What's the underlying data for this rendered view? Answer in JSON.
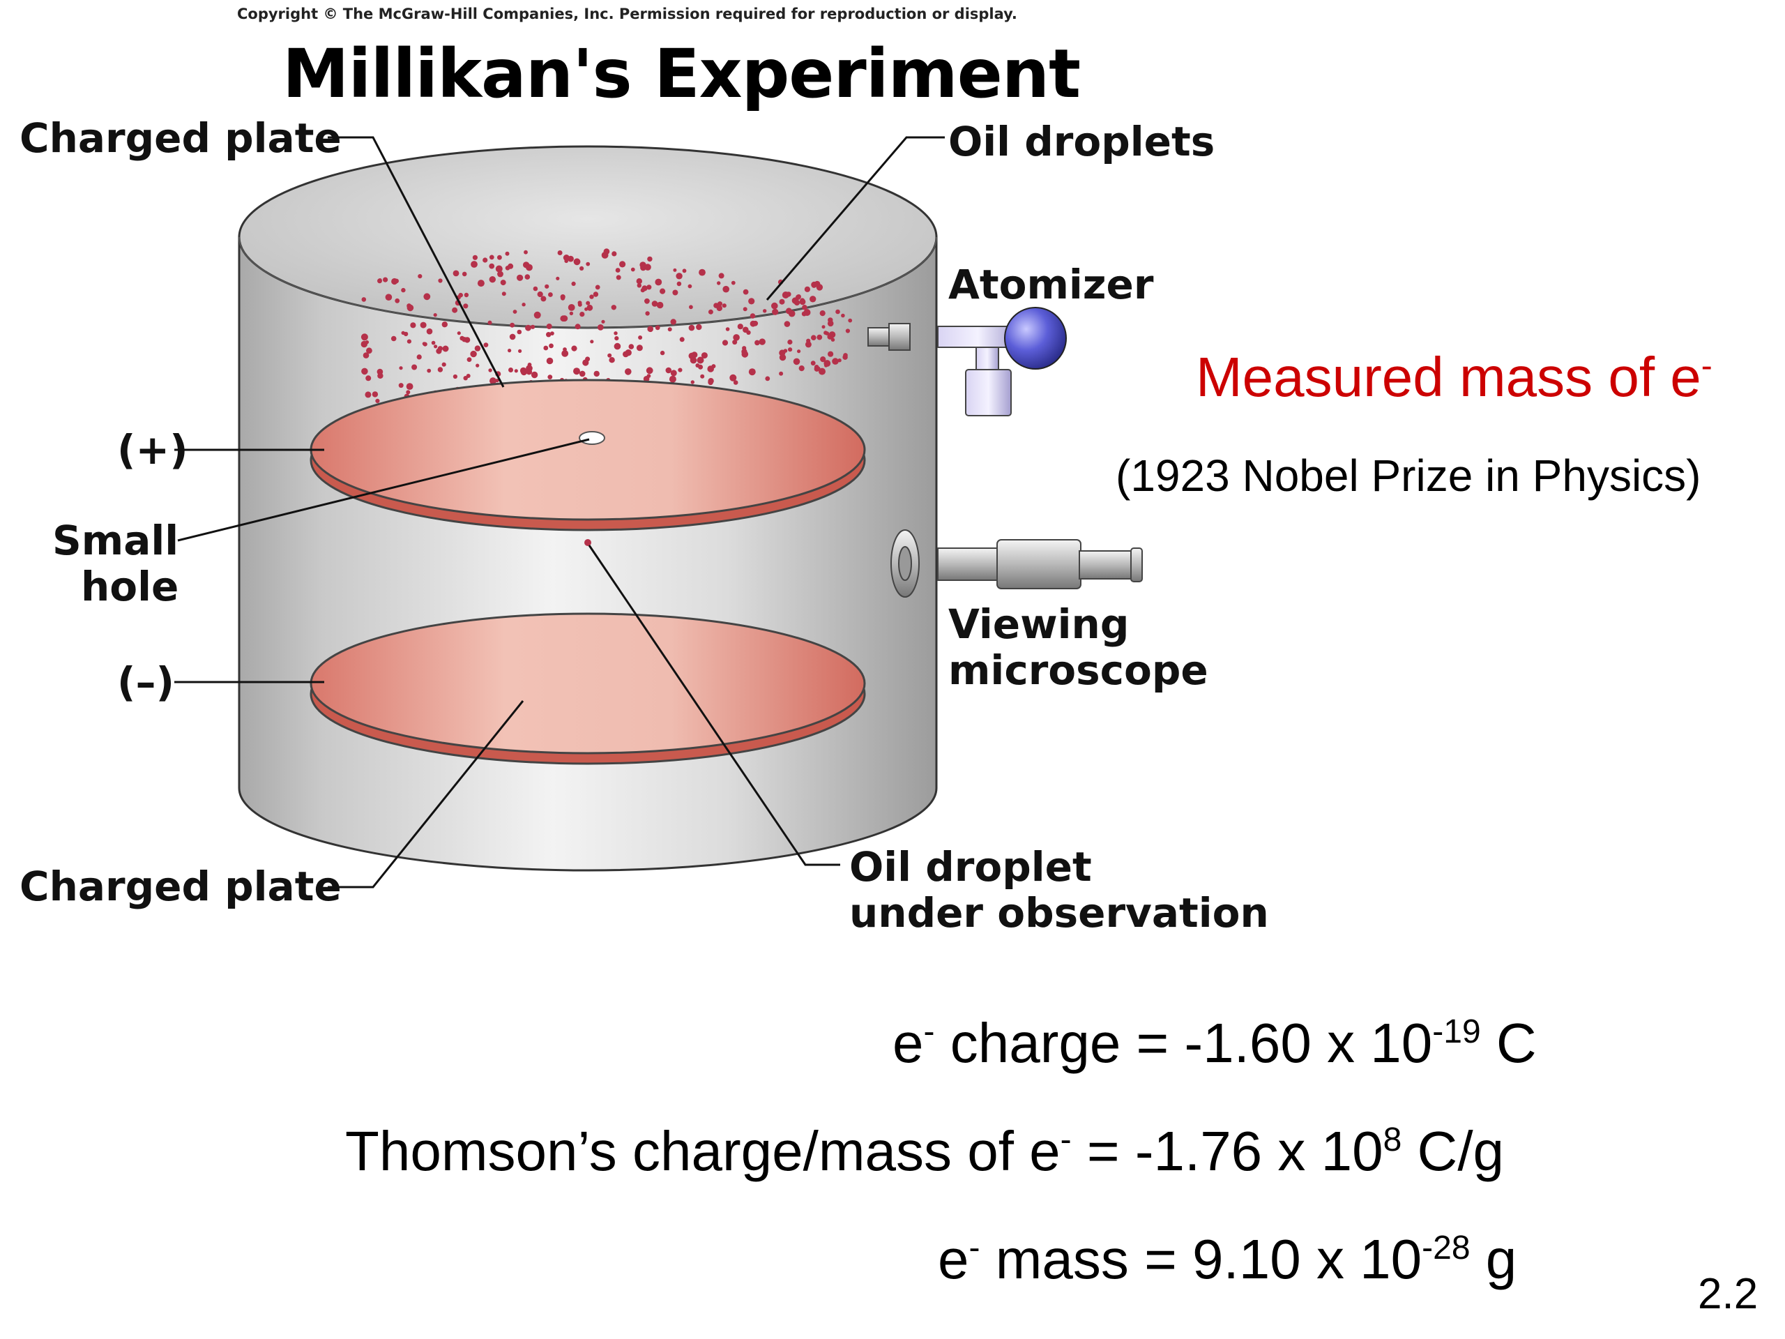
{
  "copyright": "Copyright © The McGraw-Hill Companies, Inc. Permission required for reproduction or display.",
  "title": "Millikan's Experiment",
  "diagram": {
    "labels": {
      "charged_plate_top": "Charged plate",
      "oil_droplets": "Oil droplets",
      "atomizer": "Atomizer",
      "plus": "(+)",
      "small_hole_line1": "Small",
      "small_hole_line2": "hole",
      "minus": "(–)",
      "viewing_line1": "Viewing",
      "viewing_line2": "microscope",
      "charged_plate_bottom": "Charged plate",
      "oil_droplet_obs_line1": "Oil droplet",
      "oil_droplet_obs_line2": "under observation"
    },
    "colors": {
      "plate": "#e9a79a",
      "droplet": "#b5314a",
      "atomizer_bulb": "#5c5ed8",
      "cylinder": "#c7c7c7"
    }
  },
  "measured": {
    "text": "Measured mass of e",
    "sup": "-"
  },
  "nobel": "(1923 Nobel Prize in Physics)",
  "equations": {
    "charge": {
      "a": "e",
      "a_sup": "-",
      "b": " charge = -1.60 x 10",
      "b_sup": "-19",
      "c": " C"
    },
    "thomson": {
      "a": "Thomson’s charge/mass of e",
      "a_sup": "-",
      "b": " = -1.76 x 10",
      "b_sup": "8",
      "c": " C/g"
    },
    "mass": {
      "a": "e",
      "a_sup": "-",
      "b": " mass = 9.10 x 10",
      "b_sup": "-28",
      "c": " g"
    }
  },
  "page_number": "2.2"
}
